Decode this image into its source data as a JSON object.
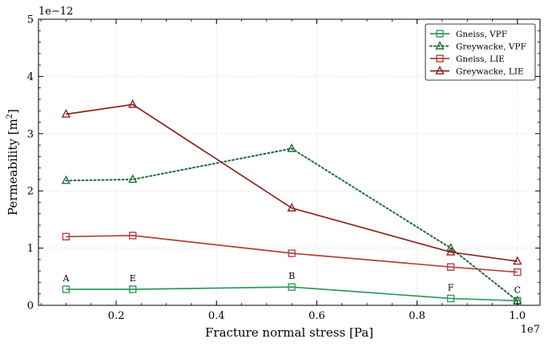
{
  "chart_data": {
    "type": "line",
    "xlabel": "Fracture normal stress [Pa]",
    "ylabel_text": "Permeability [m",
    "ylabel_sup": "2",
    "ylabel_close": "]",
    "x_exponent_label": "1e7",
    "y_exponent_label": "1e−12",
    "xlim": [
      0.045,
      1.045
    ],
    "ylim": [
      0,
      5
    ],
    "xticks": [
      0.2,
      0.4,
      0.6,
      0.8,
      1.0
    ],
    "xtick_labels": [
      "0.2",
      "0.4",
      "0.6",
      "0.8",
      "1.0"
    ],
    "yticks": [
      0,
      1,
      2,
      3,
      4,
      5
    ],
    "ytick_labels": [
      "0",
      "1",
      "2",
      "3",
      "4",
      "5"
    ],
    "grid": true,
    "legend_position": "top-right",
    "x": [
      0.1,
      0.233,
      0.55,
      0.867,
      1.0
    ],
    "series": [
      {
        "name": "Gneiss, VPF",
        "color": "#2e9a5a",
        "marker": "square",
        "linestyle": "solid",
        "values": [
          0.28,
          0.28,
          0.32,
          0.12,
          0.08
        ]
      },
      {
        "name": "Greywacke, VPF",
        "color": "#1e6b3c",
        "marker": "triangle",
        "linestyle": "dotted",
        "values": [
          2.18,
          2.2,
          2.74,
          1.0,
          0.08
        ]
      },
      {
        "name": "Gneiss, LIE",
        "color": "#b0433c",
        "marker": "square",
        "linestyle": "solid",
        "values": [
          1.2,
          1.22,
          0.91,
          0.67,
          0.58
        ]
      },
      {
        "name": "Greywacke, LIE",
        "color": "#8b2420",
        "marker": "triangle",
        "linestyle": "solid",
        "values": [
          3.34,
          3.51,
          1.7,
          0.93,
          0.77
        ]
      }
    ],
    "annotations": [
      {
        "text": "A",
        "x": 0.1,
        "y": 0.28
      },
      {
        "text": "E",
        "x": 0.233,
        "y": 0.28
      },
      {
        "text": "B",
        "x": 0.55,
        "y": 0.32
      },
      {
        "text": "F",
        "x": 0.867,
        "y": 0.12
      },
      {
        "text": "C",
        "x": 1.0,
        "y": 0.08
      }
    ]
  }
}
